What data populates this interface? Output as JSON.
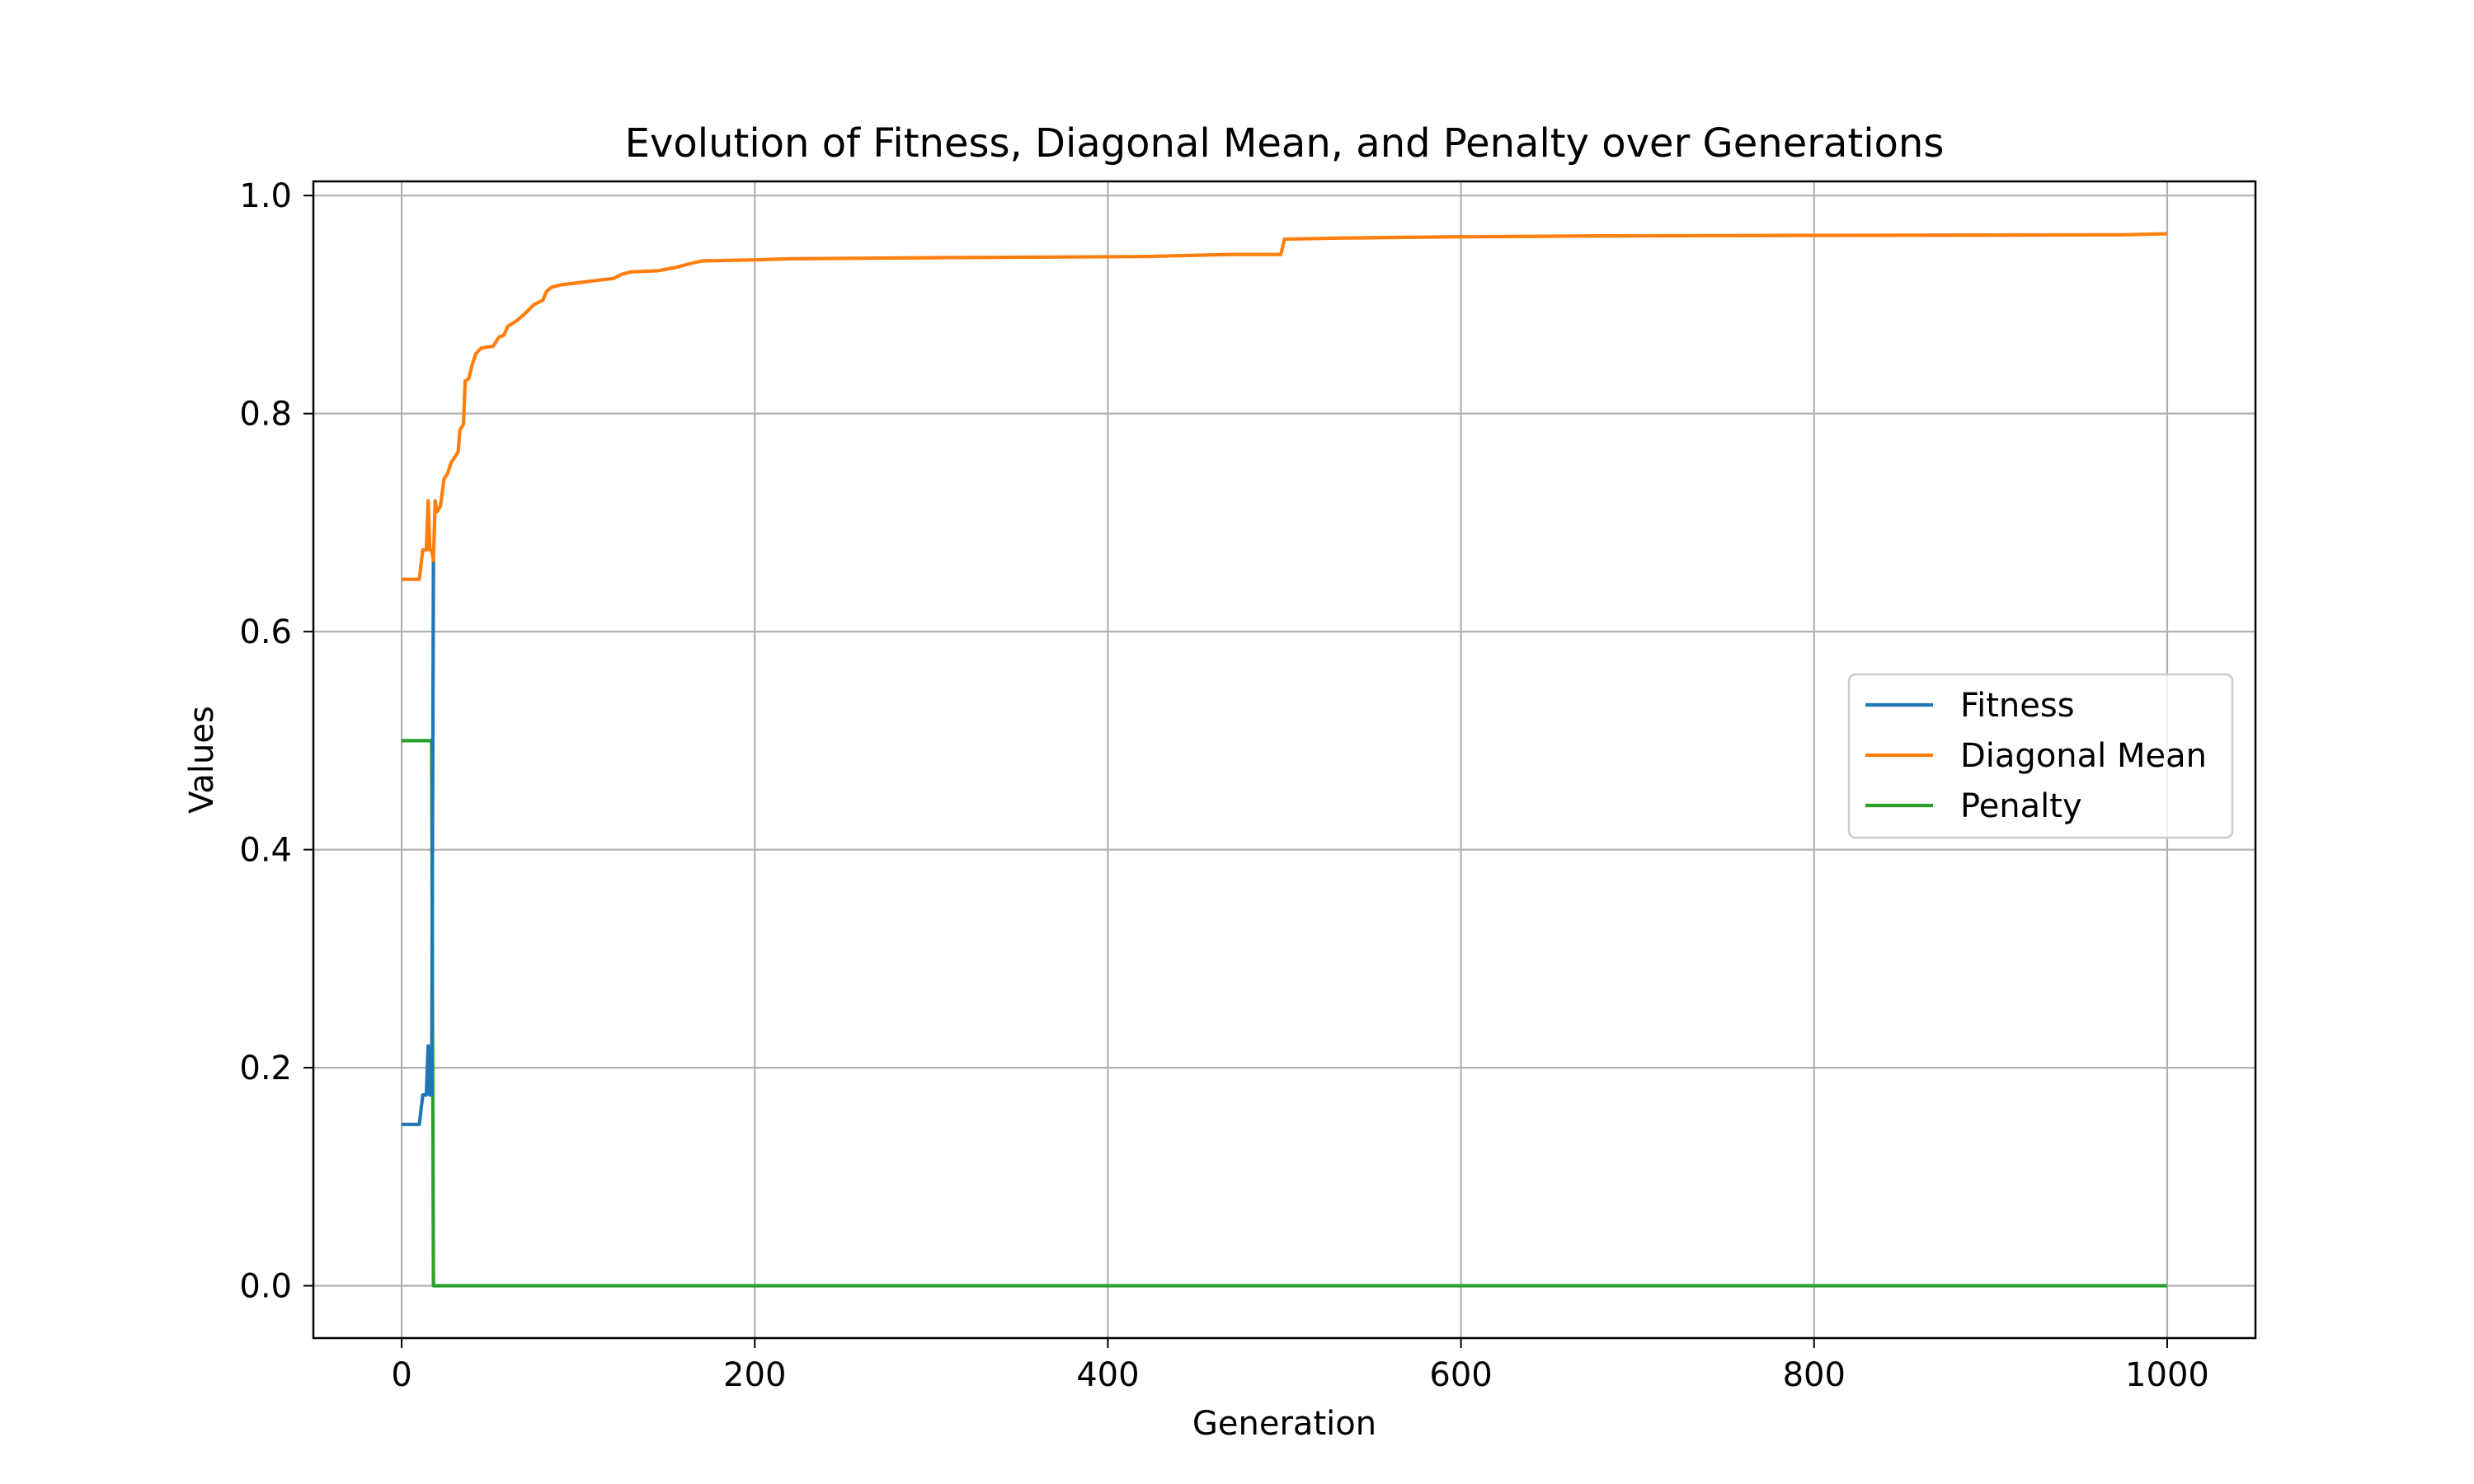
{
  "chart_data": {
    "type": "line",
    "title": "Evolution of Fitness, Diagonal Mean, and Penalty over Generations",
    "xlabel": "Generation",
    "ylabel": "Values",
    "xlim": [
      -50,
      1050
    ],
    "ylim": [
      -0.048,
      1.013
    ],
    "xticks": [
      0,
      200,
      400,
      600,
      800,
      1000
    ],
    "xtick_labels": [
      "0",
      "200",
      "400",
      "600",
      "800",
      "1000"
    ],
    "yticks": [
      0.0,
      0.2,
      0.4,
      0.6,
      0.8,
      1.0
    ],
    "ytick_labels": [
      "0.0",
      "0.2",
      "0.4",
      "0.6",
      "0.8",
      "1.0"
    ],
    "grid": true,
    "legend_position": "center-right",
    "series": [
      {
        "name": "Fitness",
        "color": "#1f77b4",
        "points": [
          [
            0,
            0.148
          ],
          [
            10,
            0.148
          ],
          [
            11,
            0.162
          ],
          [
            12,
            0.175
          ],
          [
            14,
            0.175
          ],
          [
            15,
            0.22
          ],
          [
            16,
            0.175
          ],
          [
            17,
            0.175
          ],
          [
            18,
            0.665
          ]
        ]
      },
      {
        "name": "Diagonal Mean",
        "color": "#ff7f0e",
        "points": [
          [
            0,
            0.648
          ],
          [
            10,
            0.648
          ],
          [
            11,
            0.662
          ],
          [
            12,
            0.675
          ],
          [
            14,
            0.675
          ],
          [
            15,
            0.72
          ],
          [
            16,
            0.675
          ],
          [
            17,
            0.675
          ],
          [
            18,
            0.665
          ],
          [
            19,
            0.72
          ],
          [
            20,
            0.71
          ],
          [
            22,
            0.715
          ],
          [
            24,
            0.74
          ],
          [
            26,
            0.745
          ],
          [
            28,
            0.755
          ],
          [
            30,
            0.76
          ],
          [
            32,
            0.765
          ],
          [
            33,
            0.785
          ],
          [
            35,
            0.79
          ],
          [
            36,
            0.83
          ],
          [
            38,
            0.832
          ],
          [
            40,
            0.845
          ],
          [
            42,
            0.855
          ],
          [
            45,
            0.86
          ],
          [
            52,
            0.862
          ],
          [
            55,
            0.87
          ],
          [
            58,
            0.872
          ],
          [
            60,
            0.88
          ],
          [
            65,
            0.885
          ],
          [
            70,
            0.892
          ],
          [
            75,
            0.9
          ],
          [
            80,
            0.904
          ],
          [
            82,
            0.912
          ],
          [
            85,
            0.916
          ],
          [
            90,
            0.918
          ],
          [
            100,
            0.92
          ],
          [
            110,
            0.922
          ],
          [
            120,
            0.924
          ],
          [
            125,
            0.928
          ],
          [
            130,
            0.93
          ],
          [
            145,
            0.931
          ],
          [
            155,
            0.934
          ],
          [
            162,
            0.937
          ],
          [
            170,
            0.94
          ],
          [
            200,
            0.941
          ],
          [
            220,
            0.942
          ],
          [
            300,
            0.943
          ],
          [
            420,
            0.944
          ],
          [
            470,
            0.946
          ],
          [
            498,
            0.946
          ],
          [
            500,
            0.96
          ],
          [
            530,
            0.961
          ],
          [
            590,
            0.962
          ],
          [
            680,
            0.963
          ],
          [
            975,
            0.964
          ],
          [
            1000,
            0.965
          ]
        ]
      },
      {
        "name": "Penalty",
        "color": "#2ca02c",
        "points": [
          [
            0,
            0.5
          ],
          [
            17,
            0.5
          ],
          [
            18,
            0.0
          ],
          [
            1000,
            0.0
          ]
        ]
      }
    ]
  }
}
